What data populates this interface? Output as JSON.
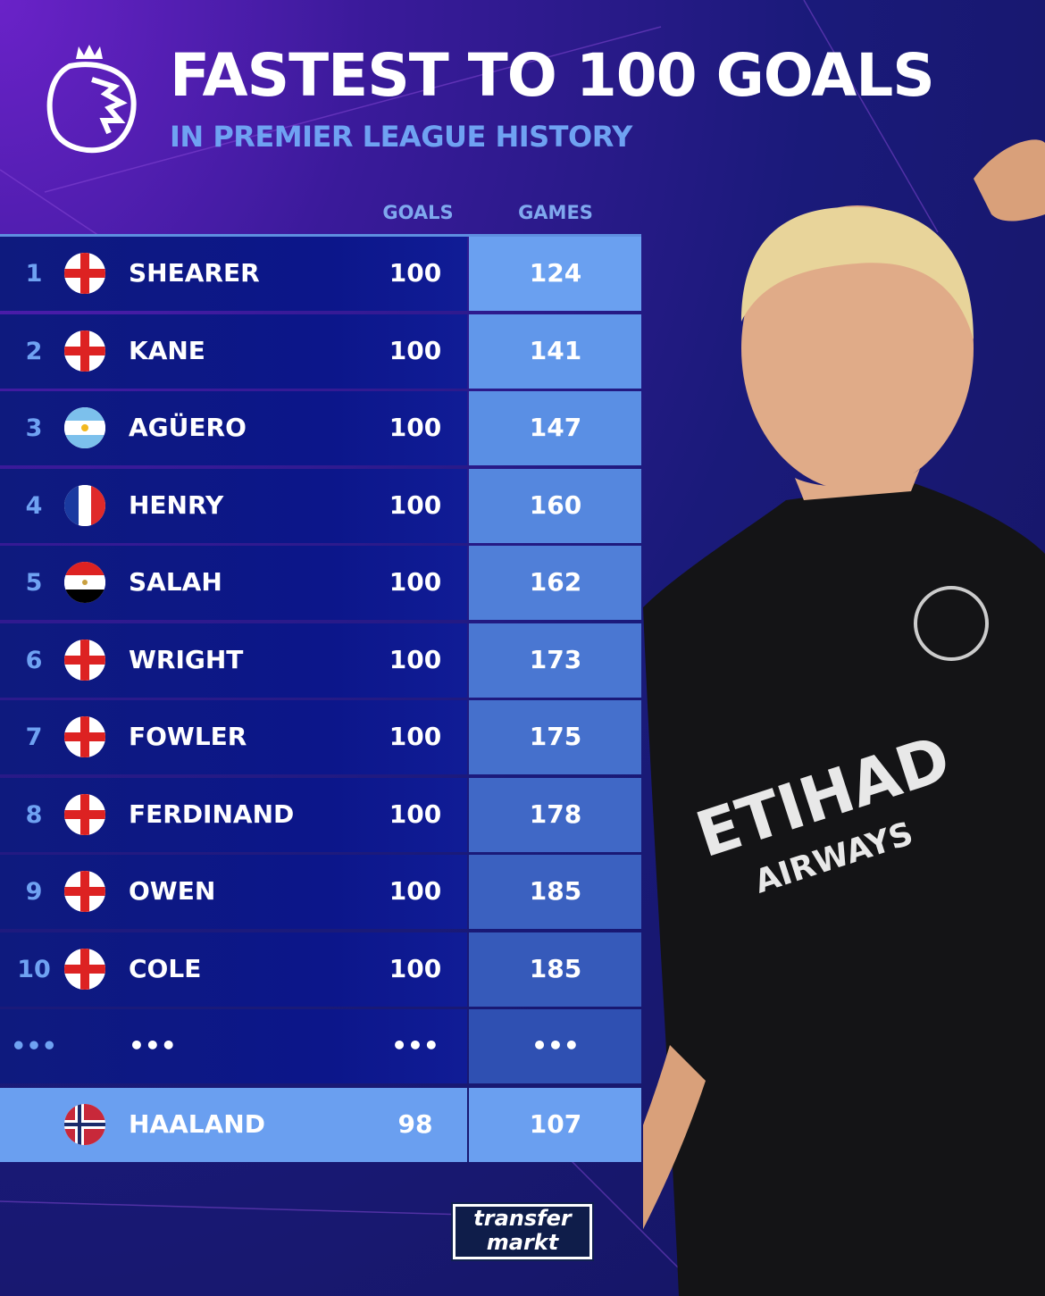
{
  "header": {
    "title": "FASTEST TO 100 GOALS",
    "subtitle": "IN PREMIER LEAGUE HISTORY",
    "logo": "premier-league-lion-logo"
  },
  "columns": {
    "goals": "GOALS",
    "games": "GAMES"
  },
  "rows": [
    {
      "rank": "1",
      "flag": "england",
      "name": "SHEARER",
      "goals": "100",
      "games": "124",
      "color": "#6aa0f0"
    },
    {
      "rank": "2",
      "flag": "england",
      "name": "KANE",
      "goals": "100",
      "games": "141",
      "color": "#6197ea"
    },
    {
      "rank": "3",
      "flag": "argentina",
      "name": "AGÜERO",
      "goals": "100",
      "games": "147",
      "color": "#5a8fe4"
    },
    {
      "rank": "4",
      "flag": "france",
      "name": "HENRY",
      "goals": "100",
      "games": "160",
      "color": "#5587de"
    },
    {
      "rank": "5",
      "flag": "egypt",
      "name": "SALAH",
      "goals": "100",
      "games": "162",
      "color": "#507fd8"
    },
    {
      "rank": "6",
      "flag": "england",
      "name": "WRIGHT",
      "goals": "100",
      "games": "173",
      "color": "#4a77d2"
    },
    {
      "rank": "7",
      "flag": "england",
      "name": "FOWLER",
      "goals": "100",
      "games": "175",
      "color": "#4570cc"
    },
    {
      "rank": "8",
      "flag": "england",
      "name": "FERDINAND",
      "goals": "100",
      "games": "178",
      "color": "#4068c6"
    },
    {
      "rank": "9",
      "flag": "england",
      "name": "OWEN",
      "goals": "100",
      "games": "185",
      "color": "#3b61c0"
    },
    {
      "rank": "10",
      "flag": "england",
      "name": "COLE",
      "goals": "100",
      "games": "185",
      "color": "#365aba"
    },
    {
      "rank": "•••",
      "flag": "",
      "name": "•••",
      "goals": "•••",
      "games": "•••",
      "color": "#2f50b2"
    }
  ],
  "highlight": {
    "flag": "norway",
    "name": "HAALAND",
    "goals": "98",
    "games": "107",
    "color": "#6a9ff0"
  },
  "watermark": {
    "line1": "transfer",
    "line2": "markt"
  }
}
